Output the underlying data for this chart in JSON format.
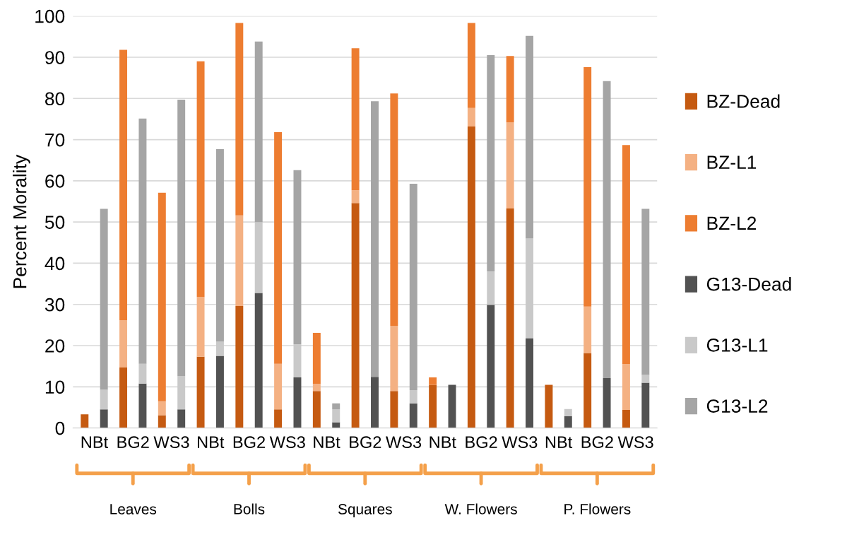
{
  "chart_data": {
    "type": "bar",
    "stacked": true,
    "ylabel": "Percent Morality",
    "categories": [
      "NBt",
      null,
      "BG2",
      null,
      "WS3",
      null,
      "NBt",
      null,
      "BG2",
      null,
      "WS3",
      null,
      "NBt",
      null,
      "BG2",
      null,
      "WS3",
      null,
      "NBt",
      null,
      "BG2",
      null,
      "WS3",
      null,
      "NBt",
      null,
      "BG2",
      null,
      "WS3",
      null
    ],
    "series": [
      {
        "name": "BZ-Dead",
        "color": "#c55a11",
        "values": [
          3.3,
          null,
          14.7,
          null,
          3.1,
          null,
          17.3,
          null,
          29.6,
          null,
          4.5,
          null,
          9.0,
          null,
          54.6,
          null,
          9.0,
          null,
          10.5,
          null,
          73.2,
          null,
          53.3,
          null,
          10.5,
          null,
          18.2,
          null,
          4.4,
          null
        ]
      },
      {
        "name": "BZ-L1",
        "color": "#f4b183",
        "values": [
          0,
          null,
          11.5,
          null,
          3.4,
          null,
          14.5,
          null,
          22.0,
          null,
          11.1,
          null,
          1.7,
          null,
          3.1,
          null,
          15.8,
          null,
          0,
          null,
          4.5,
          null,
          20.9,
          null,
          0,
          null,
          11.3,
          null,
          11.1,
          null
        ]
      },
      {
        "name": "BZ-L2",
        "color": "#ed7d31",
        "values": [
          0,
          null,
          65.6,
          null,
          50.6,
          null,
          57.2,
          null,
          46.7,
          null,
          56.2,
          null,
          12.4,
          null,
          34.5,
          null,
          56.4,
          null,
          1.8,
          null,
          20.6,
          null,
          16.1,
          null,
          0,
          null,
          58.1,
          null,
          53.2,
          null
        ]
      },
      {
        "name": "G13-Dead",
        "color": "#525252",
        "values": [
          null,
          4.5,
          null,
          10.8,
          null,
          4.5,
          null,
          17.5,
          null,
          32.8,
          null,
          12.3,
          null,
          1.4,
          null,
          12.4,
          null,
          6.0,
          null,
          10.5,
          null,
          29.9,
          null,
          21.8,
          null,
          2.9,
          null,
          12.1,
          null,
          11.0
        ]
      },
      {
        "name": "G13-L1",
        "color": "#c9c9c9",
        "values": [
          null,
          4.8,
          null,
          4.8,
          null,
          8.1,
          null,
          3.5,
          null,
          17.2,
          null,
          8.0,
          null,
          3.1,
          null,
          0,
          null,
          3.2,
          null,
          0,
          null,
          8.1,
          null,
          24.2,
          null,
          1.7,
          null,
          0,
          null,
          1.9
        ]
      },
      {
        "name": "G13-L2",
        "color": "#a5a5a5",
        "values": [
          null,
          43.9,
          null,
          59.5,
          null,
          67.1,
          null,
          46.7,
          null,
          43.8,
          null,
          42.3,
          null,
          1.5,
          null,
          66.9,
          null,
          50.1,
          null,
          0,
          null,
          52.5,
          null,
          49.2,
          null,
          0,
          null,
          72.1,
          null,
          40.3
        ]
      }
    ],
    "ylim": [
      0,
      100
    ],
    "yticks": [
      0,
      10,
      20,
      30,
      40,
      50,
      60,
      70,
      80,
      90,
      100
    ],
    "grid": "y",
    "legend": "right",
    "annotations": [
      "Leaves",
      "Bolls",
      "Squares",
      "W. Flowers",
      "P. Flowers"
    ]
  }
}
